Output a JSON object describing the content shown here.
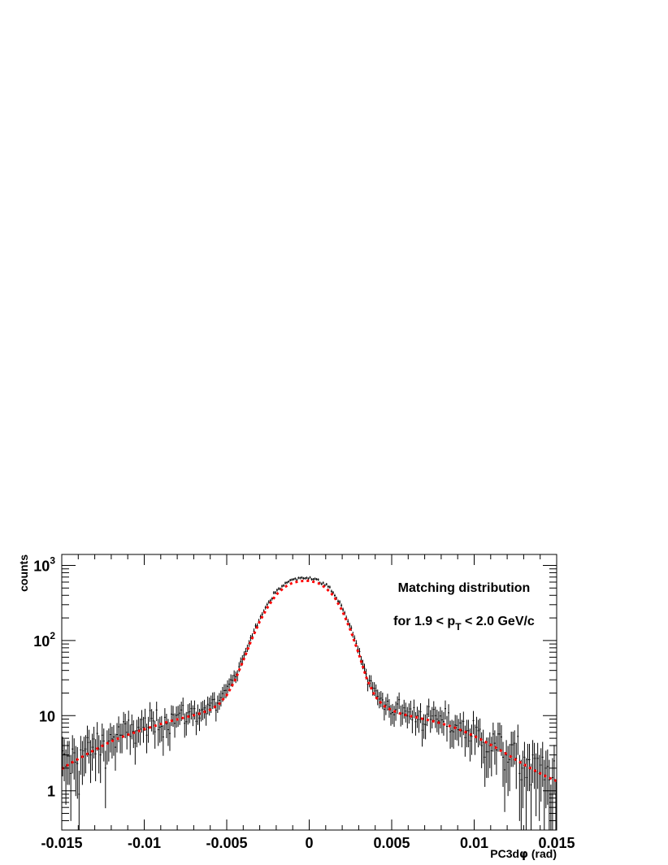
{
  "chart_data": {
    "type": "scatter",
    "xlabel_prefix": "PC3d",
    "xlabel_symbol": "φ",
    "xlabel_suffix": " (rad)",
    "ylabel": "counts",
    "xlim": [
      -0.015,
      0.015
    ],
    "ylim": [
      0.3,
      1400
    ],
    "yscale": "log",
    "grid": false,
    "annotations": {
      "title": "Matching distribution",
      "cut_prefix": "for 1.9 < p",
      "cut_sub": "T",
      "cut_suffix": " < 2.0 GeV/c"
    },
    "x_ticks": [
      {
        "value": -0.015,
        "label": "-0.015"
      },
      {
        "value": -0.01,
        "label": "-0.01"
      },
      {
        "value": -0.005,
        "label": "-0.005"
      },
      {
        "value": 0,
        "label": "0"
      },
      {
        "value": 0.005,
        "label": "0.005"
      },
      {
        "value": 0.01,
        "label": "0.01"
      },
      {
        "value": 0.015,
        "label": "0.015"
      }
    ],
    "y_ticks": [
      {
        "value": 1,
        "base": "1",
        "exp": ""
      },
      {
        "value": 10,
        "base": "10",
        "exp": ""
      },
      {
        "value": 100,
        "base": "10",
        "exp": "2"
      },
      {
        "value": 1000,
        "base": "10",
        "exp": "3"
      }
    ],
    "fit": {
      "name": "fit",
      "color": "#ff0000",
      "style": "dotted",
      "x": [
        -0.015,
        -0.0145,
        -0.014,
        -0.0135,
        -0.013,
        -0.0125,
        -0.012,
        -0.0115,
        -0.011,
        -0.0105,
        -0.01,
        -0.0095,
        -0.009,
        -0.0085,
        -0.008,
        -0.0075,
        -0.007,
        -0.0065,
        -0.006,
        -0.0055,
        -0.005,
        -0.0045,
        -0.004,
        -0.0035,
        -0.003,
        -0.0025,
        -0.002,
        -0.0015,
        -0.001,
        -0.0005,
        0,
        0.0005,
        0.001,
        0.0015,
        0.002,
        0.0025,
        0.003,
        0.0035,
        0.004,
        0.0045,
        0.005,
        0.0055,
        0.006,
        0.0065,
        0.007,
        0.0075,
        0.008,
        0.0085,
        0.009,
        0.0095,
        0.01,
        0.0105,
        0.011,
        0.0115,
        0.012,
        0.0125,
        0.013,
        0.0135,
        0.014,
        0.0145,
        0.015
      ],
      "y": [
        1.95,
        2.3,
        2.65,
        3.05,
        3.5,
        4.0,
        4.55,
        5.05,
        5.55,
        6.05,
        6.6,
        7.15,
        7.75,
        8.35,
        8.9,
        9.5,
        10.1,
        10.9,
        12.0,
        14.0,
        18.7,
        29.5,
        54.0,
        102,
        180,
        283,
        408,
        513,
        590,
        620,
        625,
        588,
        505,
        388,
        250,
        138,
        67,
        30.5,
        18.0,
        13.6,
        11.8,
        10.7,
        10.0,
        9.5,
        8.95,
        8.45,
        7.9,
        7.3,
        6.7,
        6.0,
        5.35,
        4.7,
        4.1,
        3.55,
        3.05,
        2.6,
        2.25,
        1.95,
        1.7,
        1.5,
        1.35
      ]
    },
    "data_series": {
      "name": "data",
      "color": "#000000",
      "bins": 300,
      "description_values_from_fit_with_scatter": true
    },
    "colors": {
      "fit": "#ff0000",
      "data": "#000000",
      "frame": "#000000"
    }
  }
}
